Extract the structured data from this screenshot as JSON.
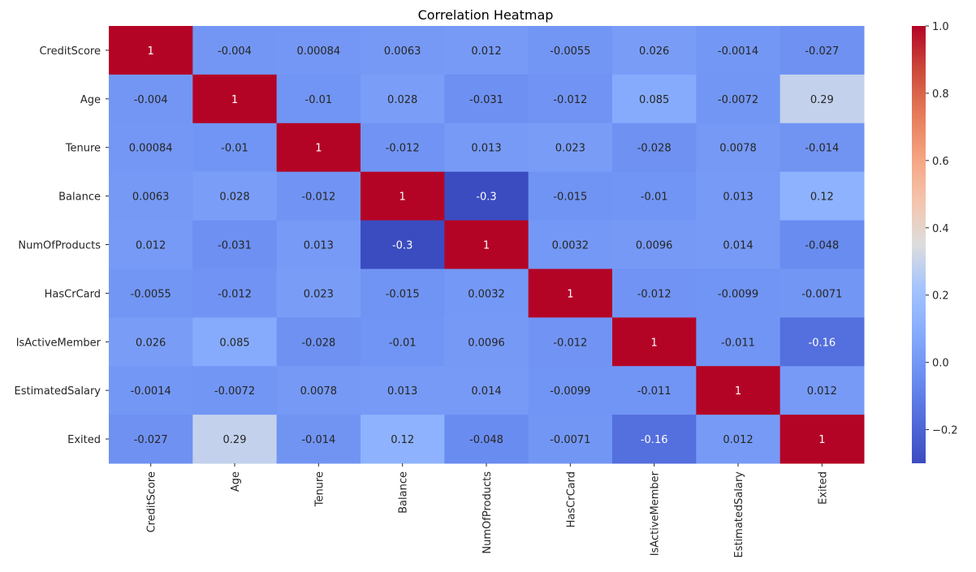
{
  "chart_data": {
    "type": "heatmap",
    "title": "Correlation Heatmap",
    "xlabel": "",
    "ylabel": "",
    "colormap": "coolwarm",
    "vmin": -0.3,
    "vmax": 1.0,
    "labels": [
      "CreditScore",
      "Age",
      "Tenure",
      "Balance",
      "NumOfProducts",
      "HasCrCard",
      "IsActiveMember",
      "EstimatedSalary",
      "Exited"
    ],
    "values": [
      [
        1,
        -0.004,
        0.00084,
        0.0063,
        0.012,
        -0.0055,
        0.026,
        -0.0014,
        -0.027
      ],
      [
        -0.004,
        1,
        -0.01,
        0.028,
        -0.031,
        -0.012,
        0.085,
        -0.0072,
        0.29
      ],
      [
        0.00084,
        -0.01,
        1,
        -0.012,
        0.013,
        0.023,
        -0.028,
        0.0078,
        -0.014
      ],
      [
        0.0063,
        0.028,
        -0.012,
        1,
        -0.3,
        -0.015,
        -0.01,
        0.013,
        0.12
      ],
      [
        0.012,
        -0.031,
        0.013,
        -0.3,
        1,
        0.0032,
        0.0096,
        0.014,
        -0.048
      ],
      [
        -0.0055,
        -0.012,
        0.023,
        -0.015,
        0.0032,
        1,
        -0.012,
        -0.0099,
        -0.0071
      ],
      [
        0.026,
        0.085,
        -0.028,
        -0.01,
        0.0096,
        -0.012,
        1,
        -0.011,
        -0.16
      ],
      [
        -0.0014,
        -0.0072,
        0.0078,
        0.013,
        0.014,
        -0.0099,
        -0.011,
        1,
        0.012
      ],
      [
        -0.027,
        0.29,
        -0.014,
        0.12,
        -0.048,
        -0.0071,
        -0.16,
        0.012,
        1
      ]
    ],
    "cell_text": [
      [
        "1",
        "-0.004",
        "0.00084",
        "0.0063",
        "0.012",
        "-0.0055",
        "0.026",
        "-0.0014",
        "-0.027"
      ],
      [
        "-0.004",
        "1",
        "-0.01",
        "0.028",
        "-0.031",
        "-0.012",
        "0.085",
        "-0.0072",
        "0.29"
      ],
      [
        "0.00084",
        "-0.01",
        "1",
        "-0.012",
        "0.013",
        "0.023",
        "-0.028",
        "0.0078",
        "-0.014"
      ],
      [
        "0.0063",
        "0.028",
        "-0.012",
        "1",
        "-0.3",
        "-0.015",
        "-0.01",
        "0.013",
        "0.12"
      ],
      [
        "0.012",
        "-0.031",
        "0.013",
        "-0.3",
        "1",
        "0.0032",
        "0.0096",
        "0.014",
        "-0.048"
      ],
      [
        "-0.0055",
        "-0.012",
        "0.023",
        "-0.015",
        "0.0032",
        "1",
        "-0.012",
        "-0.0099",
        "-0.0071"
      ],
      [
        "0.026",
        "0.085",
        "-0.028",
        "-0.01",
        "0.0096",
        "-0.012",
        "1",
        "-0.011",
        "-0.16"
      ],
      [
        "-0.0014",
        "-0.0072",
        "0.0078",
        "0.013",
        "0.014",
        "-0.0099",
        "-0.011",
        "1",
        "0.012"
      ],
      [
        "-0.027",
        "0.29",
        "-0.014",
        "0.12",
        "-0.048",
        "-0.0071",
        "-0.16",
        "0.012",
        "1"
      ]
    ],
    "colorbar": {
      "ticks": [
        -0.2,
        0.0,
        0.2,
        0.4,
        0.6,
        0.8,
        1.0
      ],
      "tick_labels": [
        "−0.2",
        "0.0",
        "0.2",
        "0.4",
        "0.6",
        "0.8",
        "1.0"
      ]
    },
    "grid": false
  }
}
